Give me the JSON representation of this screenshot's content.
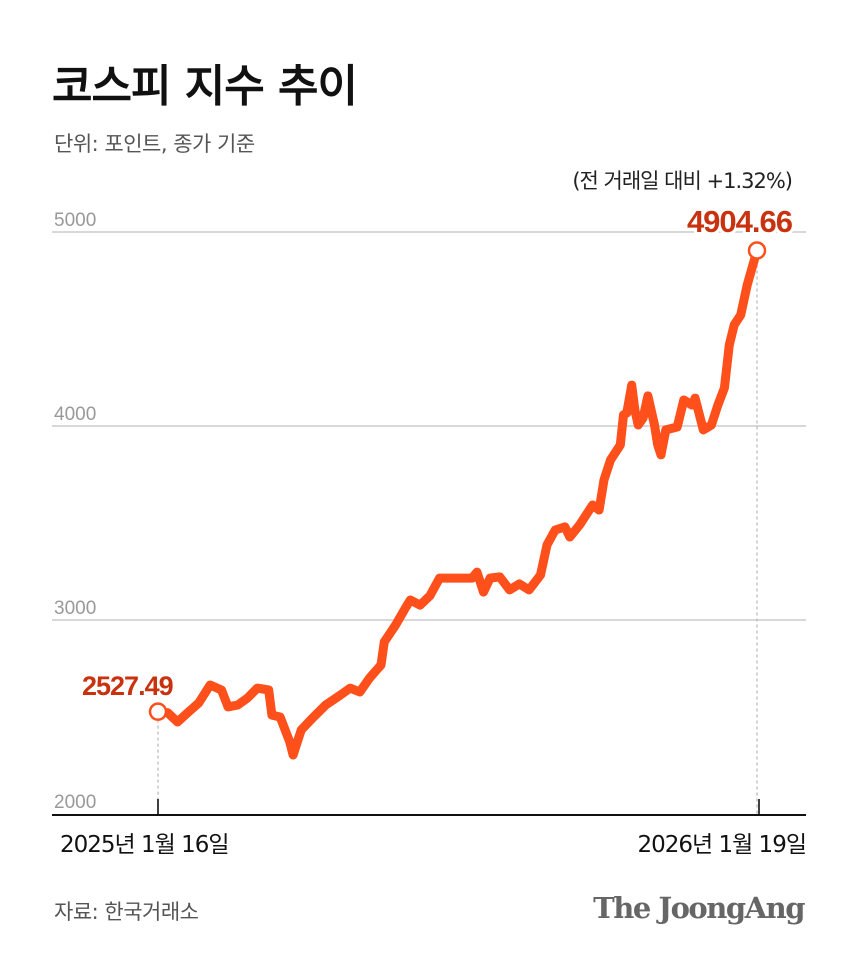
{
  "title": "코스피 지수 추이",
  "subtitle": "단위: 포인트, 종가 기준",
  "source": "자료: 한국거래소",
  "logo": "The JoongAng",
  "colors": {
    "line": "#ff4f1a",
    "label": "#c8320f",
    "grid": "#cccccc",
    "axis": "#111111",
    "tick_label": "#999999"
  },
  "chart_data": {
    "type": "line",
    "title": "코스피 지수 추이",
    "ylim": [
      2000,
      5000
    ],
    "yticks": [
      "2000",
      "3000",
      "4000",
      "5000"
    ],
    "xticks": [
      "2025년 1월 16일",
      "2026년 1월 19일"
    ],
    "grid": true,
    "start_label": "2527.49",
    "end_label": "4904.66",
    "end_annotation": "(전 거래일 대비 +1.32%)",
    "x": [
      "2025-01-16",
      "2025-01-22",
      "2025-01-28",
      "2025-02-03",
      "2025-02-10",
      "2025-02-17",
      "2025-02-24",
      "2025-02-28",
      "2025-03-06",
      "2025-03-12",
      "2025-03-18",
      "2025-03-25",
      "2025-03-27",
      "2025-04-01",
      "2025-04-07",
      "2025-04-09",
      "2025-04-14",
      "2025-04-21",
      "2025-04-29",
      "2025-05-08",
      "2025-05-14",
      "2025-05-20",
      "2025-05-26",
      "2025-06-02",
      "2025-06-04",
      "2025-06-11",
      "2025-06-17",
      "2025-06-20",
      "2025-06-26",
      "2025-07-02",
      "2025-07-08",
      "2025-07-14",
      "2025-07-28",
      "2025-07-31",
      "2025-08-04",
      "2025-08-08",
      "2025-08-14",
      "2025-08-20",
      "2025-08-26",
      "2025-09-01",
      "2025-09-08",
      "2025-09-12",
      "2025-09-17",
      "2025-09-23",
      "2025-09-26",
      "2025-10-02",
      "2025-10-10",
      "2025-10-14",
      "2025-10-17",
      "2025-10-21",
      "2025-10-27",
      "2025-10-29",
      "2025-10-31",
      "2025-11-03",
      "2025-11-05",
      "2025-11-07",
      "2025-11-10",
      "2025-11-13",
      "2025-11-17",
      "2025-11-19",
      "2025-11-21",
      "2025-11-24",
      "2025-12-01",
      "2025-12-05",
      "2025-12-10",
      "2025-12-12",
      "2025-12-17",
      "2025-12-22",
      "2025-12-26",
      "2025-12-30",
      "2026-01-02",
      "2026-01-05",
      "2026-01-09",
      "2026-01-13",
      "2026-01-19"
    ],
    "values": [
      2527.49,
      2522,
      2474,
      2520,
      2572,
      2665,
      2639,
      2552,
      2562,
      2598,
      2649,
      2639,
      2510,
      2500,
      2371,
      2304,
      2433,
      2495,
      2562,
      2613,
      2649,
      2629,
      2701,
      2768,
      2887,
      2974,
      3062,
      3103,
      3077,
      3124,
      3216,
      3216,
      3216,
      3247,
      3144,
      3216,
      3222,
      3155,
      3186,
      3155,
      3232,
      3387,
      3464,
      3480,
      3428,
      3490,
      3593,
      3567,
      3722,
      3825,
      3902,
      4057,
      4067,
      4211,
      4082,
      4005,
      4041,
      4155,
      4005,
      3902,
      3851,
      3980,
      3995,
      4134,
      4108,
      4144,
      3980,
      4005,
      4108,
      4196,
      4418,
      4521,
      4572,
      4727,
      4904.66
    ]
  }
}
